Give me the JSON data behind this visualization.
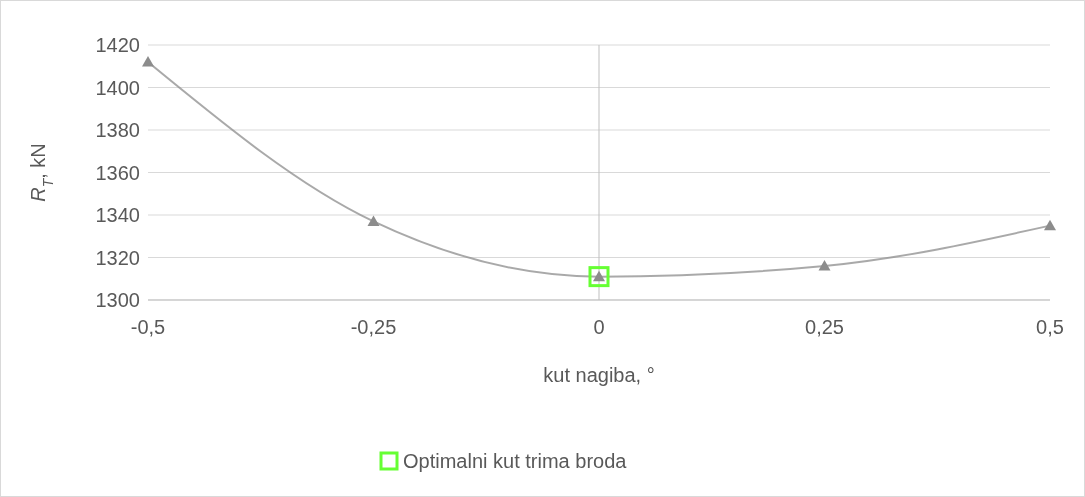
{
  "chart_data": {
    "type": "line",
    "xlabel": "kut nagiba, °",
    "ylabel": "R$_{T}$, kN",
    "x": [
      -0.5,
      -0.25,
      0,
      0.25,
      0.5
    ],
    "series": [
      {
        "color": "#8c8c8c",
        "marker": "triangle",
        "values": [
          1412,
          1337,
          1311,
          1316,
          1335
        ]
      },
      {
        "type": "scatter",
        "name": "Optimalni kut trima broda",
        "color": "#66ff33",
        "marker": "square",
        "x": [
          0
        ],
        "values": [
          1311
        ]
      }
    ],
    "xlim": [
      -0.5,
      0.5
    ],
    "xticks": [
      {
        "value": -0.5,
        "label": "-0,5"
      },
      {
        "value": -0.25,
        "label": "-0,25"
      },
      0,
      {
        "value": 0.25,
        "label": "0,25"
      },
      {
        "value": 0.5,
        "label": "0,5"
      }
    ],
    "ylim": [
      1300,
      1420
    ],
    "yticks": [
      1300,
      1320,
      1340,
      1360,
      1380,
      1400,
      1420
    ],
    "grid": "y",
    "legend": "bottom"
  }
}
